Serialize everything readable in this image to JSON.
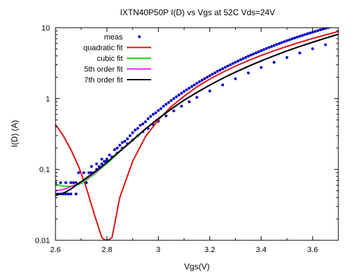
{
  "chart_data": {
    "type": "scatter",
    "title": "IXTN40P50P I(D) vs Vgs at 52C Vds=24V",
    "xlabel": "Vgs(V)",
    "ylabel": "I(D) (A)",
    "xlim": [
      2.6,
      3.7
    ],
    "ylim": [
      0.01,
      10
    ],
    "yscale": "log",
    "grid": false,
    "legend_position": "top-left",
    "xticks": [
      2.6,
      2.8,
      3,
      3.2,
      3.4,
      3.6
    ],
    "xtick_labels": [
      "2.6",
      "2.8",
      "3",
      "3.2",
      "3.4",
      "3.6"
    ],
    "yticks": [
      0.01,
      0.1,
      1,
      10
    ],
    "ytick_labels": [
      "0.01",
      "0.1",
      "1",
      "10"
    ],
    "series": [
      {
        "name": "meas",
        "kind": "points",
        "color": "#0000cc",
        "x": [
          2.6,
          2.61,
          2.62,
          2.63,
          2.64,
          2.65,
          2.66,
          2.67,
          2.68,
          2.69,
          2.7,
          2.71,
          2.72,
          2.73,
          2.74,
          2.75,
          2.76,
          2.77,
          2.78,
          2.79,
          2.8,
          2.81,
          2.82,
          2.83,
          2.84,
          2.85,
          2.86,
          2.87,
          2.88,
          2.89,
          2.9,
          2.91,
          2.92,
          2.93,
          2.94,
          2.95,
          2.96,
          2.97,
          2.98,
          2.99,
          3.0,
          3.01,
          3.02,
          3.03,
          3.04,
          3.05,
          3.06,
          3.07,
          3.08,
          3.09,
          3.1,
          3.11,
          3.12,
          3.13,
          3.14,
          3.15,
          3.16,
          3.17,
          3.18,
          3.19,
          3.2,
          3.21,
          3.22,
          3.23,
          3.24,
          3.25,
          3.26,
          3.27,
          3.28,
          3.29,
          3.3,
          3.31,
          3.32,
          3.33,
          3.34,
          3.35,
          3.36,
          3.37,
          3.38,
          3.39,
          3.4,
          3.41,
          3.42,
          3.43,
          3.44,
          3.45,
          3.46,
          3.47,
          3.48,
          3.49,
          3.5,
          3.51,
          3.52,
          3.53,
          3.54,
          3.55,
          3.56,
          3.57,
          3.58,
          3.59,
          3.6,
          3.61,
          3.62,
          3.63,
          3.64,
          3.65,
          3.66,
          3.67,
          3.68,
          3.69,
          2.6,
          2.62,
          2.64,
          2.66,
          2.68,
          2.7,
          2.72,
          2.74,
          2.76,
          2.78,
          2.8,
          2.82,
          2.84,
          2.86,
          2.88,
          2.9,
          2.92,
          2.94,
          2.96,
          2.98,
          3.0,
          3.03,
          3.06,
          3.09,
          3.12,
          3.15,
          3.2,
          3.25,
          3.3,
          3.35,
          3.4,
          3.45,
          3.5,
          3.55,
          3.6,
          3.65
        ],
        "y": [
          0.065,
          0.045,
          0.045,
          0.045,
          0.045,
          0.045,
          0.065,
          0.065,
          0.045,
          0.09,
          0.065,
          0.09,
          0.065,
          0.09,
          0.11,
          0.09,
          0.12,
          0.11,
          0.14,
          0.13,
          0.14,
          0.16,
          0.15,
          0.19,
          0.2,
          0.22,
          0.24,
          0.25,
          0.27,
          0.3,
          0.33,
          0.36,
          0.38,
          0.42,
          0.44,
          0.47,
          0.52,
          0.56,
          0.6,
          0.63,
          0.68,
          0.72,
          0.78,
          0.83,
          0.88,
          0.94,
          1.0,
          1.06,
          1.12,
          1.19,
          1.26,
          1.33,
          1.4,
          1.48,
          1.56,
          1.64,
          1.73,
          1.82,
          1.91,
          2.0,
          2.1,
          2.2,
          2.31,
          2.42,
          2.53,
          2.64,
          2.76,
          2.88,
          3.0,
          3.13,
          3.26,
          3.39,
          3.53,
          3.67,
          3.81,
          3.96,
          4.11,
          4.26,
          4.42,
          4.58,
          4.74,
          4.91,
          5.08,
          5.25,
          5.43,
          5.61,
          5.79,
          5.98,
          6.17,
          6.36,
          6.55,
          6.75,
          6.95,
          7.15,
          7.36,
          7.57,
          7.78,
          7.99,
          8.21,
          8.43,
          8.65,
          8.87,
          9.1,
          9.33,
          9.56,
          9.79,
          10.02,
          10.26,
          10.5,
          10.75,
          0.045,
          0.065,
          0.065,
          0.045,
          0.065,
          0.065,
          0.065,
          0.09,
          0.1,
          0.12,
          0.13,
          0.15,
          0.17,
          0.2,
          0.23,
          0.26,
          0.3,
          0.34,
          0.38,
          0.43,
          0.48,
          0.57,
          0.67,
          0.78,
          0.9,
          1.04,
          1.28,
          1.56,
          1.9,
          2.3,
          2.75,
          3.25,
          3.8,
          4.4,
          5.05,
          5.75
        ]
      },
      {
        "name": "quadratic fit",
        "kind": "line",
        "color": "#dd1111",
        "x": [
          2.6,
          2.63,
          2.66,
          2.69,
          2.72,
          2.75,
          2.78,
          2.79,
          2.8,
          2.81,
          2.82,
          2.85,
          2.9,
          2.95,
          3.0,
          3.05,
          3.1,
          3.15,
          3.2,
          3.25,
          3.3,
          3.35,
          3.4,
          3.45,
          3.5,
          3.55,
          3.6,
          3.65,
          3.7
        ],
        "y": [
          0.43,
          0.3,
          0.19,
          0.11,
          0.055,
          0.024,
          0.011,
          0.0102,
          0.01,
          0.0103,
          0.011,
          0.04,
          0.13,
          0.29,
          0.5,
          0.77,
          1.08,
          1.46,
          1.88,
          2.35,
          2.87,
          3.44,
          4.06,
          4.73,
          5.45,
          6.22,
          7.04,
          7.92,
          8.84
        ]
      },
      {
        "name": "cubic fit",
        "kind": "line",
        "color": "#22dd22",
        "x": [
          2.6,
          2.63,
          2.66,
          2.69,
          2.72,
          2.75,
          2.78,
          2.81,
          2.84,
          2.87,
          2.9,
          2.95,
          3.0,
          3.05,
          3.1,
          3.15,
          3.2,
          3.25,
          3.3,
          3.35,
          3.4,
          3.45,
          3.5,
          3.55,
          3.6,
          3.65,
          3.7
        ],
        "y": [
          0.062,
          0.058,
          0.058,
          0.061,
          0.071,
          0.085,
          0.105,
          0.13,
          0.165,
          0.205,
          0.255,
          0.37,
          0.52,
          0.71,
          0.95,
          1.22,
          1.55,
          1.93,
          2.37,
          2.86,
          3.41,
          4.02,
          4.7,
          5.43,
          6.24,
          7.12,
          8.08
        ]
      },
      {
        "name": "5th order fit",
        "kind": "line",
        "color": "#ee22ee",
        "x": [
          2.6,
          2.63,
          2.66,
          2.69,
          2.72,
          2.75,
          2.78,
          2.81,
          2.84,
          2.87,
          2.9,
          2.95,
          3.0,
          3.05,
          3.1,
          3.15,
          3.2,
          3.25,
          3.3,
          3.35,
          3.4,
          3.45,
          3.5,
          3.55,
          3.6,
          3.65,
          3.7
        ],
        "y": [
          0.05,
          0.052,
          0.057,
          0.064,
          0.074,
          0.088,
          0.108,
          0.135,
          0.17,
          0.21,
          0.26,
          0.375,
          0.525,
          0.715,
          0.95,
          1.22,
          1.55,
          1.93,
          2.36,
          2.85,
          3.4,
          4.01,
          4.69,
          5.43,
          6.24,
          7.12,
          8.1
        ]
      },
      {
        "name": "7th order fit",
        "kind": "line",
        "color": "#000000",
        "x": [
          2.6,
          2.62,
          2.64,
          2.66,
          2.68,
          2.7,
          2.72,
          2.75,
          2.78,
          2.81,
          2.84,
          2.87,
          2.9,
          2.95,
          3.0,
          3.05,
          3.1,
          3.15,
          3.2,
          3.25,
          3.3,
          3.35,
          3.4,
          3.45,
          3.5,
          3.55,
          3.6,
          3.65,
          3.7
        ],
        "y": [
          0.043,
          0.045,
          0.048,
          0.053,
          0.06,
          0.067,
          0.076,
          0.091,
          0.11,
          0.135,
          0.168,
          0.208,
          0.258,
          0.372,
          0.522,
          0.712,
          0.948,
          1.22,
          1.55,
          1.93,
          2.36,
          2.85,
          3.4,
          4.01,
          4.69,
          5.43,
          6.24,
          7.12,
          8.08
        ]
      }
    ]
  }
}
